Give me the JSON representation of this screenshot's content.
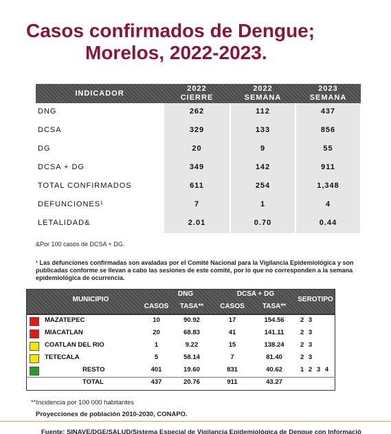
{
  "header": {
    "title_lines": [
      "Casos confirmados de Dengue;",
      "Morelos, 2022-2023."
    ]
  },
  "table": {
    "columns": [
      "INDICADOR",
      [
        "2022",
        "CIERRE"
      ],
      [
        "2022",
        "SEMANA"
      ],
      [
        "2023",
        "SEMANA"
      ]
    ],
    "rows": [
      [
        "DNG",
        "262",
        "112",
        "437"
      ],
      [
        "DCSA",
        "329",
        "133",
        "856"
      ],
      [
        "DG",
        "20",
        "9",
        "55"
      ],
      [
        "DCSA + DG",
        "349",
        "142",
        "911"
      ],
      [
        "TOTAL CONFIRMADOS",
        "611",
        "254",
        "1,348"
      ],
      [
        "DEFUNCIONES¹",
        "7",
        "1",
        "4"
      ],
      [
        "LETALIDAD&",
        "2.01",
        "0.70",
        "0.44"
      ]
    ]
  },
  "notes": [
    "&Por 100 casos de DCSA + DG.",
    "¹ Las defunciones confirmadas son avaladas por el Comité Nacional para la Vigilancia Epidemiológica y son publicadas conforme se llevan a cabo las sesiones de este comité, por lo que no corresponden a la semana epidemiológica de ocurrencia."
  ],
  "table2": {
    "group_headers": [
      "MUNICIPIO",
      "DNG",
      "DCSA + DG",
      "SEROTIPO"
    ],
    "sub_headers": [
      "CASOS",
      "TASA**",
      "CASOS",
      "TASA**"
    ],
    "rows": [
      {
        "color": "#e01a1a",
        "cells": [
          "MAZATEPEC",
          "10",
          "90.92",
          "17",
          "154.56",
          "2 3"
        ]
      },
      {
        "color": "#e01a1a",
        "cells": [
          "MIACATLAN",
          "20",
          "68.83",
          "41",
          "141.11",
          "2 3"
        ]
      },
      {
        "color": "#f2e600",
        "cells": [
          "COATLAN DEL RIO",
          "1",
          "9.22",
          "15",
          "138.24",
          "2 3"
        ]
      },
      {
        "color": "#f2e600",
        "cells": [
          "TETECALA",
          "5",
          "58.14",
          "7",
          "81.40",
          "2 3"
        ]
      },
      {
        "color": "#2a9a2a",
        "cells": [
          "RESTO",
          "401",
          "19.60",
          "831",
          "40.62",
          "1 2 3 4"
        ]
      },
      {
        "color": null,
        "cells": [
          "TOTAL",
          "437",
          "20.76",
          "911",
          "43.27",
          null
        ]
      }
    ]
  },
  "footnotes": [
    "**Incidencia por 100 000 habitantes",
    "Proyecciones de población 2010-2030, CONAPO."
  ],
  "source": "Fuente: SINAVE/DGE/SALUD/Sistema Especial de Vigilancia Epidemiológica de Dengue con Informació"
}
